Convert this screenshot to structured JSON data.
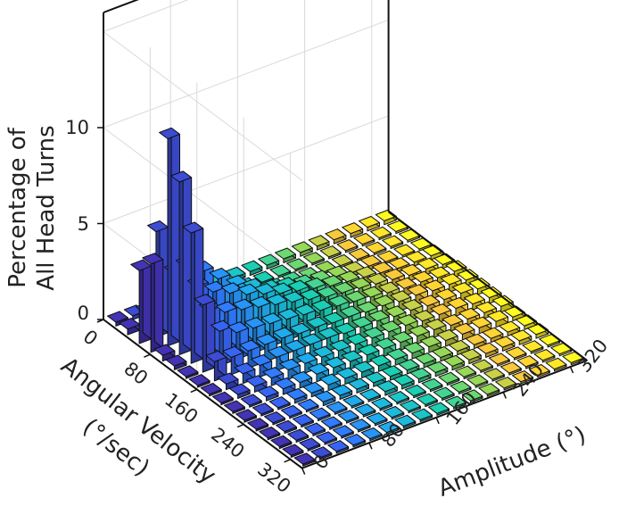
{
  "chart_data": {
    "type": "bar3d",
    "zlabel_lines": [
      "Percentage of",
      "All Head Turns"
    ],
    "ylabel_lines": [
      "Angular Velocity",
      "(°/sec)"
    ],
    "xlabel": "Amplitude (°)",
    "z_ticks": [
      "0",
      "5",
      "10"
    ],
    "y_ticks": [
      "0",
      "80",
      "160",
      "240",
      "320"
    ],
    "x_ticks": [
      "0",
      "80",
      "160",
      "240",
      "320"
    ],
    "zlim": [
      0,
      10
    ],
    "velocity_bins": [
      0,
      20,
      40,
      60,
      80,
      100,
      120,
      140,
      160,
      180,
      200,
      220,
      240,
      260,
      280,
      300,
      320
    ],
    "amplitude_bins": [
      0,
      20,
      40,
      60,
      80,
      100,
      120,
      140,
      160,
      180,
      200,
      220,
      240,
      260,
      280,
      300,
      320
    ],
    "grid": "on",
    "colormap": [
      "#3e2fa8",
      "#2f6cf2",
      "#1aa5d8",
      "#19c0a6",
      "#7cca55",
      "#f5b933",
      "#f5e81e"
    ],
    "note_series": "Percentage of head turns per (velocity, amplitude) bin; row 0 = lowest velocity",
    "values": [
      [
        0.2,
        0.2,
        0.2,
        0.2,
        0.2,
        0.2,
        0.2,
        0.2,
        0.2,
        0.2,
        0.2,
        0.2,
        0.2,
        0.2,
        0.2,
        0.2,
        0.2
      ],
      [
        0.3,
        0.8,
        0.2,
        0.1,
        0.1,
        0.1,
        0.1,
        0.1,
        0.1,
        0.1,
        0.1,
        0.1,
        0.1,
        0.1,
        0.1,
        0.1,
        0.1
      ],
      [
        3.8,
        5.5,
        3.0,
        1.8,
        1.0,
        0.6,
        0.4,
        0.3,
        0.2,
        0.2,
        0.1,
        0.1,
        0.1,
        0.1,
        0.1,
        0.1,
        0.1
      ],
      [
        4.6,
        10.8,
        3.8,
        3.2,
        2.5,
        1.8,
        1.3,
        0.9,
        0.7,
        0.5,
        0.4,
        0.3,
        0.2,
        0.2,
        0.1,
        0.1,
        0.1
      ],
      [
        0.3,
        9.0,
        3.2,
        2.6,
        2.2,
        1.8,
        1.5,
        1.2,
        1.0,
        0.8,
        0.6,
        0.5,
        0.4,
        0.3,
        0.2,
        0.2,
        0.2
      ],
      [
        0.2,
        6.8,
        2.4,
        2.0,
        1.8,
        1.6,
        1.4,
        1.2,
        1.0,
        0.8,
        0.7,
        0.6,
        0.5,
        0.4,
        0.3,
        0.3,
        0.2
      ],
      [
        0.1,
        3.5,
        1.8,
        1.4,
        1.3,
        1.2,
        1.1,
        1.0,
        0.9,
        0.8,
        0.7,
        0.6,
        0.5,
        0.4,
        0.4,
        0.3,
        0.3
      ],
      [
        0.1,
        1.0,
        0.9,
        0.9,
        0.9,
        0.9,
        0.8,
        0.8,
        0.7,
        0.7,
        0.6,
        0.6,
        0.5,
        0.5,
        0.4,
        0.4,
        0.3
      ],
      [
        0.1,
        0.3,
        0.5,
        0.6,
        0.7,
        0.7,
        0.7,
        0.7,
        0.6,
        0.6,
        0.6,
        0.5,
        0.5,
        0.4,
        0.4,
        0.4,
        0.3
      ],
      [
        0.1,
        0.2,
        0.3,
        0.4,
        0.5,
        0.5,
        0.5,
        0.5,
        0.5,
        0.5,
        0.5,
        0.5,
        0.4,
        0.4,
        0.4,
        0.3,
        0.3
      ],
      [
        0.1,
        0.1,
        0.2,
        0.3,
        0.3,
        0.4,
        0.4,
        0.4,
        0.4,
        0.4,
        0.4,
        0.4,
        0.4,
        0.3,
        0.3,
        0.3,
        0.3
      ],
      [
        0.1,
        0.1,
        0.1,
        0.2,
        0.2,
        0.3,
        0.3,
        0.3,
        0.3,
        0.3,
        0.3,
        0.3,
        0.3,
        0.3,
        0.3,
        0.3,
        0.2
      ],
      [
        0.1,
        0.1,
        0.1,
        0.1,
        0.2,
        0.2,
        0.2,
        0.2,
        0.2,
        0.2,
        0.2,
        0.2,
        0.2,
        0.2,
        0.2,
        0.2,
        0.2
      ],
      [
        0.1,
        0.1,
        0.1,
        0.1,
        0.1,
        0.1,
        0.1,
        0.2,
        0.2,
        0.2,
        0.2,
        0.2,
        0.2,
        0.2,
        0.2,
        0.2,
        0.2
      ],
      [
        0.1,
        0.1,
        0.1,
        0.1,
        0.1,
        0.1,
        0.1,
        0.1,
        0.1,
        0.1,
        0.1,
        0.1,
        0.1,
        0.1,
        0.1,
        0.1,
        0.1
      ],
      [
        0.1,
        0.1,
        0.1,
        0.1,
        0.1,
        0.1,
        0.1,
        0.1,
        0.1,
        0.1,
        0.1,
        0.1,
        0.1,
        0.1,
        0.1,
        0.1,
        0.1
      ],
      [
        0.1,
        0.1,
        0.1,
        0.1,
        0.1,
        0.1,
        0.1,
        0.1,
        0.1,
        0.1,
        0.1,
        0.1,
        0.1,
        0.1,
        0.1,
        0.1,
        0.1
      ]
    ]
  }
}
